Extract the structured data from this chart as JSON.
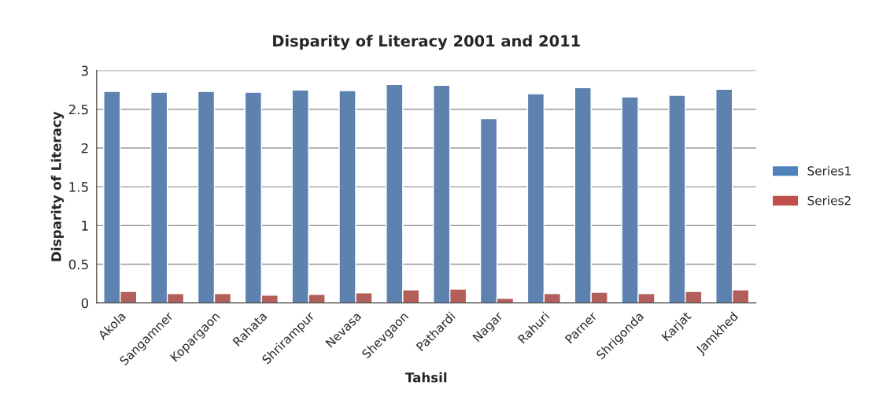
{
  "chart_data": {
    "type": "bar",
    "title": "Disparity of Literacy 2001 and 2011",
    "xlabel": "Tahsil",
    "ylabel": "Disparity of Literacy",
    "categories": [
      "Akola",
      "Sangamner",
      "Kopargaon",
      "Rahata",
      "Shrirampur",
      "Nevasa",
      "Shevgaon",
      "Pathardi",
      "Nagar",
      "Rahuri",
      "Parner",
      "Shrigonda",
      "Karjat",
      "Jamkhed"
    ],
    "series": [
      {
        "name": "Series1",
        "color": "#4f81bd",
        "values": [
          2.73,
          2.72,
          2.73,
          2.72,
          2.75,
          2.74,
          2.82,
          2.81,
          2.38,
          2.7,
          2.78,
          2.66,
          2.68,
          2.76
        ]
      },
      {
        "name": "Series2",
        "color": "#c0504d",
        "values": [
          0.15,
          0.12,
          0.12,
          0.1,
          0.11,
          0.13,
          0.17,
          0.18,
          0.06,
          0.12,
          0.14,
          0.12,
          0.15,
          0.17
        ]
      }
    ],
    "ylim": [
      0,
      3
    ],
    "yticks": [
      0,
      0.5,
      1,
      1.5,
      2,
      2.5,
      3
    ],
    "grid": "y",
    "legend": "right"
  }
}
